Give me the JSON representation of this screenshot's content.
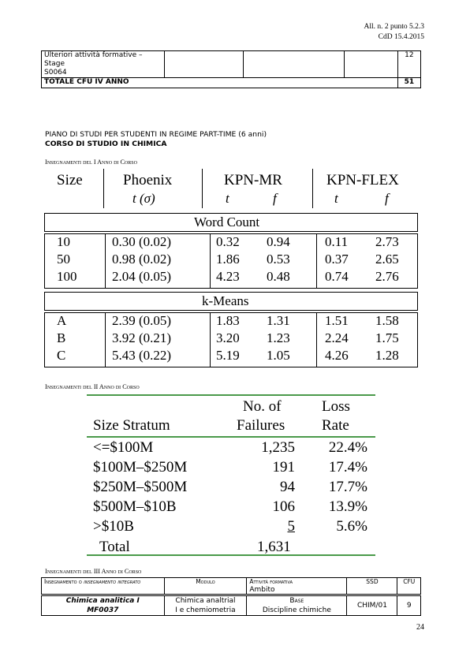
{
  "header": {
    "line1": "All. n. 2 punto 5.2.3",
    "line2": "CdD 15.4.2015"
  },
  "top_table": {
    "row1": {
      "name_l1": "Ulteriori attività formative –",
      "name_l2": "Stage",
      "name_l3": "S0064",
      "cfu": "12"
    },
    "row2": {
      "label": "TOTALE CFU IV ANNO",
      "cfu": "51"
    }
  },
  "plan": {
    "title": "PIANO DI STUDI PER STUDENTI IN REGIME PART-TIME (6 anni)",
    "subtitle": "CORSO DI STUDIO IN CHIMICA"
  },
  "sections": {
    "year1": "Insegnamenti del I Anno di Corso",
    "year2": "Insegnamenti del II Anno di Corso",
    "year3": "Insegnamenti del III Anno di Corso"
  },
  "img_table1": {
    "headers": [
      "Size",
      "Phoenix",
      "KPN-MR",
      "KPN-FLEX"
    ],
    "subheaders": [
      "t (σ)",
      "t",
      "f",
      "t",
      "f"
    ],
    "group1": "Word Count",
    "group2": "k-Means",
    "rows1": [
      [
        "10",
        "0.30 (0.02)",
        "0.32",
        "0.94",
        "0.11",
        "2.73"
      ],
      [
        "50",
        "0.98 (0.02)",
        "1.86",
        "0.53",
        "0.37",
        "2.65"
      ],
      [
        "100",
        "2.04 (0.05)",
        "4.23",
        "0.48",
        "0.74",
        "2.76"
      ]
    ],
    "rows2": [
      [
        "A",
        "2.39 (0.05)",
        "1.83",
        "1.31",
        "1.51",
        "1.58"
      ],
      [
        "B",
        "3.92 (0.21)",
        "3.20",
        "1.23",
        "2.24",
        "1.75"
      ],
      [
        "C",
        "5.43 (0.22)",
        "5.19",
        "1.05",
        "4.26",
        "1.28"
      ]
    ]
  },
  "img_table2": {
    "h_no": "No. of",
    "h_fail": "Failures",
    "h_loss": "Loss",
    "h_rate": "Rate",
    "h_size": "Size Stratum",
    "rows": [
      [
        "<=$100M",
        "1,235",
        "22.4%"
      ],
      [
        "$100M–$250M",
        "191",
        "17.4%"
      ],
      [
        "$250M–$500M",
        "94",
        "17.7%"
      ],
      [
        "$500M–$10B",
        "106",
        "13.9%"
      ],
      [
        ">$10B",
        "5",
        "5.6%"
      ]
    ],
    "total_label": "Total",
    "total_value": "1,631"
  },
  "bottom_table": {
    "h1_a": "Insegnamento o ",
    "h1_b": "insegnamento integrato",
    "h2": "Modulo",
    "h3_a": "Attività formativa",
    "h3_b": "Ambito",
    "h4": "SSD",
    "h5": "CFU",
    "r_name": "Chimica analitica I",
    "r_code": "MF0037",
    "r_mod1": "Chimica analtrial",
    "r_mod2": "I e chemiometria",
    "r_att1": "Base",
    "r_att2": "Discipline chimiche",
    "r_ssd": "CHIM/01",
    "r_cfu": "9"
  },
  "page_number": "24"
}
